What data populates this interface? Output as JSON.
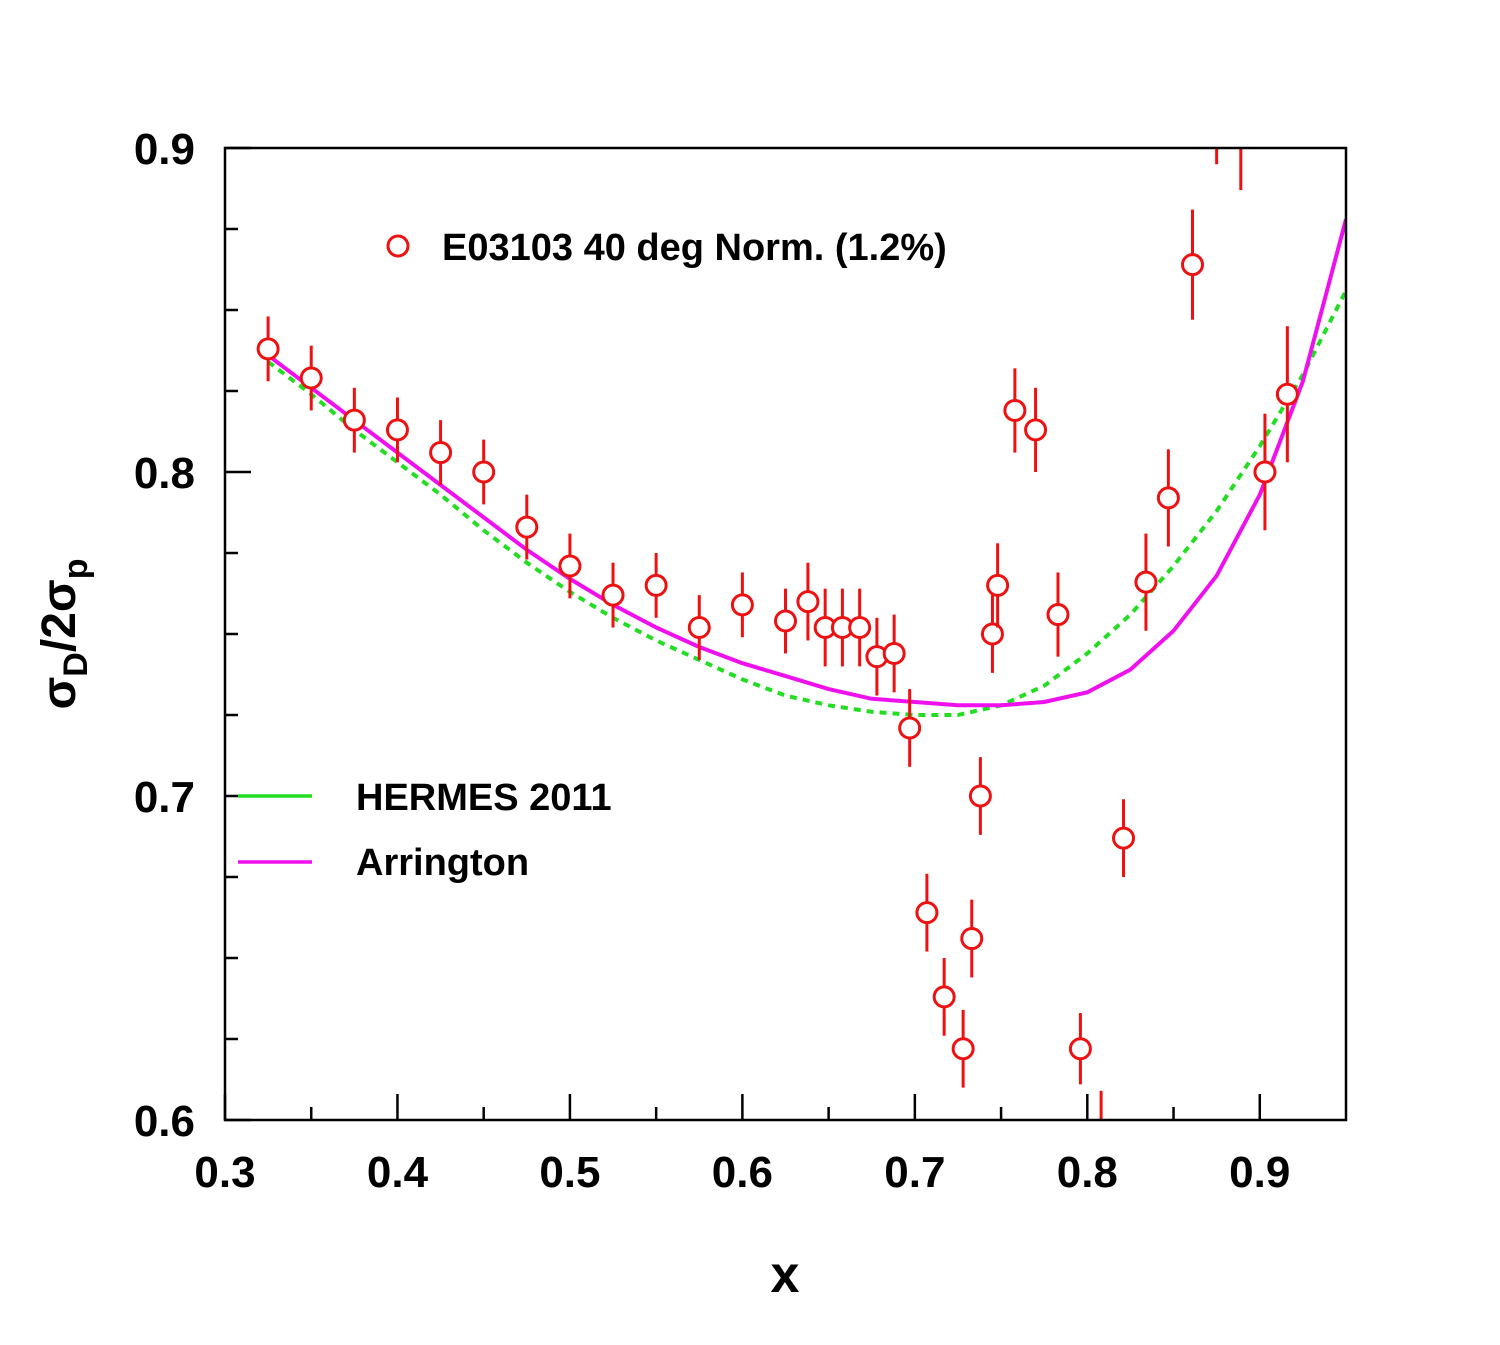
{
  "chart_data": {
    "type": "scatter",
    "xlabel": "x",
    "ylabel": {
      "sym1": "σ",
      "sub1": "D",
      "mid": "/2",
      "sym2": "σ",
      "sub2": "p"
    },
    "xlim": [
      0.3,
      0.95
    ],
    "ylim": [
      0.6,
      0.9
    ],
    "x_ticks": [
      "0.3",
      "0.4",
      "0.5",
      "0.6",
      "0.7",
      "0.8",
      "0.9"
    ],
    "y_ticks": [
      "0.6",
      "0.7",
      "0.8",
      "0.9"
    ],
    "grid": false,
    "legend": [
      {
        "label": "E03103 40 deg Norm. (1.2%)",
        "marker": "open-circle",
        "color": "#ee1111"
      },
      {
        "label": "HERMES 2011",
        "style": "dashed",
        "color": "#22dd22"
      },
      {
        "label": "Arrington",
        "style": "solid",
        "color": "#ee11ee"
      }
    ],
    "series": [
      {
        "name": "E03103 40 deg Norm. (1.2%)",
        "kind": "points",
        "color": "#ee1111",
        "x": [
          0.325,
          0.35,
          0.375,
          0.4,
          0.425,
          0.45,
          0.475,
          0.5,
          0.525,
          0.55,
          0.575,
          0.6,
          0.625,
          0.638,
          0.648,
          0.658,
          0.668,
          0.678,
          0.688,
          0.697,
          0.707,
          0.717,
          0.728,
          0.733,
          0.738,
          0.745,
          0.748,
          0.758,
          0.77,
          0.783,
          0.796,
          0.821,
          0.834,
          0.847,
          0.861,
          0.903,
          0.916
        ],
        "y": [
          0.838,
          0.829,
          0.816,
          0.813,
          0.806,
          0.8,
          0.783,
          0.771,
          0.762,
          0.765,
          0.752,
          0.759,
          0.754,
          0.76,
          0.752,
          0.752,
          0.752,
          0.743,
          0.744,
          0.721,
          0.664,
          0.638,
          0.622,
          0.656,
          0.7,
          0.75,
          0.765,
          0.819,
          0.813,
          0.756,
          0.622,
          0.687,
          0.766,
          0.792,
          0.864,
          0.8,
          0.824
        ],
        "err": [
          0.01,
          0.01,
          0.01,
          0.01,
          0.01,
          0.01,
          0.01,
          0.01,
          0.01,
          0.01,
          0.01,
          0.01,
          0.01,
          0.012,
          0.012,
          0.012,
          0.012,
          0.012,
          0.012,
          0.012,
          0.012,
          0.012,
          0.012,
          0.012,
          0.012,
          0.012,
          0.013,
          0.013,
          0.013,
          0.013,
          0.011,
          0.012,
          0.015,
          0.015,
          0.017,
          0.018,
          0.021
        ],
        "offscale_bars": [
          {
            "x": 0.808,
            "y_low": 0.591,
            "y_high": 0.609
          },
          {
            "x": 0.875,
            "y_low": 0.895,
            "y_high": 0.92
          },
          {
            "x": 0.889,
            "y_low": 0.887,
            "y_high": 0.913
          }
        ]
      },
      {
        "name": "HERMES 2011",
        "kind": "line",
        "style": "dashed",
        "color": "#22dd22",
        "x": [
          0.325,
          0.35,
          0.375,
          0.4,
          0.425,
          0.45,
          0.475,
          0.5,
          0.525,
          0.55,
          0.575,
          0.6,
          0.625,
          0.65,
          0.675,
          0.7,
          0.725,
          0.75,
          0.775,
          0.8,
          0.825,
          0.85,
          0.875,
          0.9,
          0.925,
          0.95
        ],
        "y": [
          0.834,
          0.824,
          0.813,
          0.803,
          0.793,
          0.782,
          0.772,
          0.763,
          0.755,
          0.748,
          0.742,
          0.736,
          0.731,
          0.728,
          0.726,
          0.725,
          0.725,
          0.728,
          0.734,
          0.744,
          0.756,
          0.771,
          0.788,
          0.808,
          0.83,
          0.856
        ]
      },
      {
        "name": "Arrington",
        "kind": "line",
        "style": "solid",
        "color": "#ee11ee",
        "x": [
          0.325,
          0.35,
          0.375,
          0.4,
          0.425,
          0.45,
          0.475,
          0.5,
          0.525,
          0.55,
          0.575,
          0.6,
          0.625,
          0.65,
          0.675,
          0.7,
          0.725,
          0.75,
          0.775,
          0.8,
          0.825,
          0.85,
          0.875,
          0.9,
          0.925,
          0.95
        ],
        "y": [
          0.836,
          0.826,
          0.816,
          0.806,
          0.796,
          0.786,
          0.776,
          0.767,
          0.759,
          0.752,
          0.746,
          0.741,
          0.737,
          0.733,
          0.73,
          0.729,
          0.728,
          0.728,
          0.729,
          0.732,
          0.739,
          0.751,
          0.768,
          0.793,
          0.828,
          0.878
        ]
      }
    ]
  }
}
